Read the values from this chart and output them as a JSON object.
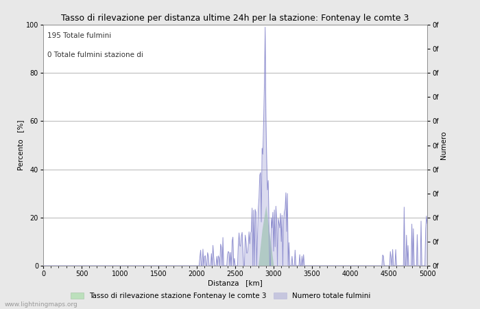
{
  "title": "Tasso di rilevazione per distanza ultime 24h per la stazione: Fontenay le comte 3",
  "xlabel": "Distanza   [km]",
  "ylabel_left": "Percento   [%]",
  "ylabel_right": "Numero",
  "annotation_line1": "195 Totale fulmini",
  "annotation_line2": "0 Totale fulmini stazione di",
  "legend_label1": "Tasso di rilevazione stazione Fontenay le comte 3",
  "legend_label2": "Numero totale fulmini",
  "watermark": "www.lightningmaps.org",
  "xlim": [
    0,
    5000
  ],
  "ylim_left": [
    0,
    100
  ],
  "ylim_right": [
    0,
    100
  ],
  "xticks": [
    0,
    500,
    1000,
    1500,
    2000,
    2500,
    3000,
    3500,
    4000,
    4500,
    5000
  ],
  "yticks_left": [
    0,
    20,
    40,
    60,
    80,
    100
  ],
  "right_tick_labels": [
    "0f",
    "0f",
    "0f",
    "0f",
    "0f",
    "0f",
    "0f",
    "0f",
    "0f",
    "0f",
    "0f"
  ],
  "bg_color": "#e8e8e8",
  "plot_bg_color": "#ffffff",
  "line_color": "#8888cc",
  "fill_color": "#aaddaa",
  "fill_alpha": 0.7,
  "line_alpha": 0.85,
  "grid_color": "#aaaaaa",
  "title_fontsize": 9,
  "label_fontsize": 7.5,
  "tick_fontsize": 7,
  "annotation_fontsize": 7.5,
  "watermark_fontsize": 6.5
}
